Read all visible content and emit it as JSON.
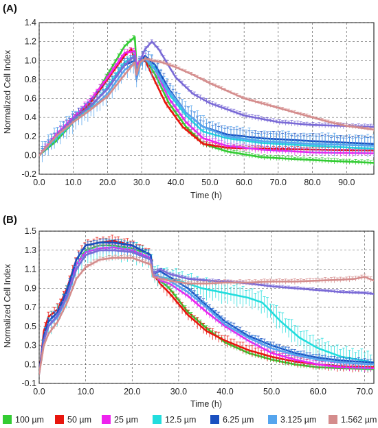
{
  "colors": {
    "100": "#33cc33",
    "50": "#e8150d",
    "25": "#ee22ee",
    "12.5": "#22dddd",
    "6.25": "#1a50c0",
    "3.125": "#55a5ee",
    "1.562": "#d48c8c",
    "lavender": "#7a6ad6"
  },
  "legend": [
    {
      "label": "100 µm",
      "color": "#33cc33"
    },
    {
      "label": "50 µm",
      "color": "#e8150d"
    },
    {
      "label": "25 µm",
      "color": "#ee22ee"
    },
    {
      "label": "12.5 µm",
      "color": "#22dddd"
    },
    {
      "label": "6.25 µm",
      "color": "#1a50c0"
    },
    {
      "label": "3.125 µm",
      "color": "#55a5ee"
    },
    {
      "label": "1.562 µm",
      "color": "#d48c8c"
    }
  ],
  "chart_data": [
    {
      "type": "line",
      "panel_label": "(A)",
      "xlabel": "Time (h)",
      "ylabel": "Normalized Cell Index",
      "xlim": [
        0,
        98
      ],
      "ylim": [
        -0.2,
        1.4
      ],
      "xticks": [
        "0.0",
        "10.0",
        "20.0",
        "30.0",
        "40.0",
        "50.0",
        "60.0",
        "70.0",
        "80.0",
        "90.0"
      ],
      "yticks": [
        "-0.2",
        "0.0",
        "0.2",
        "0.4",
        "0.6",
        "0.8",
        "1.0",
        "1.2",
        "1.4"
      ],
      "grid": true,
      "series": [
        {
          "color": "#33cc33",
          "err": 0.03,
          "x": [
            0,
            5,
            10,
            15,
            20,
            25,
            28,
            28.5,
            29.5,
            31,
            34,
            38,
            43,
            48,
            55,
            65,
            80,
            98
          ],
          "y": [
            0.0,
            0.15,
            0.35,
            0.55,
            0.85,
            1.15,
            1.25,
            0.95,
            1.0,
            1.02,
            0.85,
            0.55,
            0.3,
            0.12,
            0.04,
            -0.02,
            -0.05,
            -0.08
          ]
        },
        {
          "color": "#e8150d",
          "err": 0.03,
          "x": [
            0,
            5,
            10,
            15,
            20,
            25,
            27,
            28,
            28.5,
            29.5,
            31,
            33,
            37,
            42,
            48,
            55,
            65,
            80,
            98
          ],
          "y": [
            0.0,
            0.18,
            0.38,
            0.55,
            0.8,
            1.05,
            1.12,
            1.0,
            0.8,
            0.98,
            1.0,
            0.85,
            0.55,
            0.3,
            0.12,
            0.08,
            0.07,
            0.06,
            0.05
          ]
        },
        {
          "color": "#ee22ee",
          "err": 0.04,
          "x": [
            0,
            5,
            10,
            15,
            20,
            25,
            28,
            28.5,
            29.5,
            31,
            34,
            38,
            43,
            48,
            55,
            65,
            80,
            98
          ],
          "y": [
            0.0,
            0.22,
            0.4,
            0.58,
            0.82,
            1.08,
            1.1,
            0.95,
            1.0,
            1.05,
            0.9,
            0.6,
            0.35,
            0.18,
            0.1,
            0.06,
            0.03,
            0.02
          ]
        },
        {
          "color": "#22dddd",
          "err": 0.04,
          "x": [
            0,
            5,
            10,
            15,
            20,
            25,
            28,
            28.5,
            29.5,
            31,
            34,
            38,
            43,
            48,
            55,
            65,
            80,
            98
          ],
          "y": [
            0.0,
            0.18,
            0.35,
            0.5,
            0.72,
            0.98,
            1.05,
            0.9,
            0.98,
            1.02,
            0.92,
            0.65,
            0.42,
            0.25,
            0.18,
            0.13,
            0.1,
            0.07
          ]
        },
        {
          "color": "#1a50c0",
          "err": 0.08,
          "x": [
            0,
            5,
            10,
            15,
            20,
            25,
            28,
            28.5,
            29.5,
            31,
            34,
            38,
            43,
            48,
            55,
            65,
            80,
            98
          ],
          "y": [
            0.0,
            0.2,
            0.38,
            0.52,
            0.7,
            0.95,
            1.0,
            0.85,
            0.98,
            1.05,
            0.95,
            0.7,
            0.45,
            0.3,
            0.22,
            0.18,
            0.15,
            0.12
          ]
        },
        {
          "color": "#55a5ee",
          "err": 0.12,
          "x": [
            0,
            5,
            10,
            15,
            20,
            25,
            28,
            28.5,
            29.5,
            31,
            34,
            38,
            43,
            48,
            55,
            65,
            80,
            98
          ],
          "y": [
            0.0,
            0.2,
            0.35,
            0.48,
            0.65,
            0.9,
            0.98,
            0.8,
            0.95,
            1.02,
            0.9,
            0.68,
            0.45,
            0.3,
            0.2,
            0.15,
            0.12,
            0.1
          ]
        },
        {
          "color": "#7a6ad6",
          "err": 0.03,
          "x": [
            0,
            5,
            10,
            15,
            20,
            25,
            28,
            28.5,
            29.5,
            31,
            33,
            35,
            40,
            45,
            50,
            60,
            70,
            80,
            98
          ],
          "y": [
            0.0,
            0.2,
            0.38,
            0.52,
            0.7,
            0.95,
            1.05,
            0.85,
            1.0,
            1.12,
            1.2,
            1.12,
            0.82,
            0.65,
            0.55,
            0.42,
            0.35,
            0.32,
            0.3
          ]
        },
        {
          "color": "#d48c8c",
          "err": 0.02,
          "x": [
            0,
            5,
            10,
            15,
            20,
            25,
            28,
            28.5,
            29.5,
            31,
            33,
            36,
            40,
            45,
            50,
            55,
            60,
            65,
            70,
            75,
            80,
            85,
            90,
            98
          ],
          "y": [
            0.0,
            0.2,
            0.35,
            0.48,
            0.62,
            0.85,
            0.98,
            0.85,
            0.98,
            1.02,
            1.0,
            0.98,
            0.93,
            0.85,
            0.76,
            0.68,
            0.6,
            0.55,
            0.5,
            0.45,
            0.4,
            0.35,
            0.31,
            0.27
          ]
        }
      ]
    },
    {
      "type": "line",
      "panel_label": "(B)",
      "xlabel": "Time (h)",
      "ylabel": "Normalized Cell Index",
      "xlim": [
        0,
        72
      ],
      "ylim": [
        -0.1,
        1.5
      ],
      "xticks": [
        "0.0",
        "10.0",
        "20.0",
        "30.0",
        "40.0",
        "50.0",
        "60.0",
        "70.0"
      ],
      "yticks": [
        "-0.1",
        "0.1",
        "0.3",
        "0.5",
        "0.7",
        "0.9",
        "1.1",
        "1.3",
        "1.5"
      ],
      "grid": true,
      "series": [
        {
          "color": "#33cc33",
          "err": 0.03,
          "x": [
            0,
            1,
            2,
            4,
            6,
            8,
            10,
            13,
            16,
            20,
            24,
            24.5,
            26,
            28,
            32,
            36,
            40,
            45,
            50,
            55,
            60,
            65,
            72
          ],
          "y": [
            0.0,
            0.4,
            0.55,
            0.65,
            0.85,
            1.15,
            1.3,
            1.35,
            1.35,
            1.32,
            1.25,
            1.05,
            0.98,
            0.9,
            0.65,
            0.48,
            0.33,
            0.22,
            0.15,
            0.1,
            0.07,
            0.06,
            0.05
          ]
        },
        {
          "color": "#e8150d",
          "err": 0.06,
          "x": [
            0,
            1,
            2,
            4,
            6,
            8,
            10,
            13,
            16,
            20,
            24,
            24.5,
            26,
            28,
            32,
            36,
            40,
            45,
            50,
            55,
            60,
            65,
            72
          ],
          "y": [
            0.0,
            0.45,
            0.6,
            0.68,
            0.9,
            1.2,
            1.35,
            1.38,
            1.4,
            1.35,
            1.25,
            1.05,
            0.95,
            0.85,
            0.62,
            0.45,
            0.35,
            0.25,
            0.18,
            0.13,
            0.1,
            0.08,
            0.07
          ]
        },
        {
          "color": "#ee22ee",
          "err": 0.04,
          "x": [
            0,
            1,
            2,
            4,
            6,
            8,
            10,
            13,
            16,
            20,
            24,
            24.5,
            26,
            28,
            32,
            36,
            40,
            45,
            50,
            55,
            60,
            65,
            72
          ],
          "y": [
            0.0,
            0.4,
            0.55,
            0.65,
            0.85,
            1.15,
            1.28,
            1.32,
            1.33,
            1.3,
            1.22,
            1.05,
            0.98,
            0.95,
            0.82,
            0.65,
            0.5,
            0.35,
            0.22,
            0.15,
            0.1,
            0.07,
            0.06
          ]
        },
        {
          "color": "#22dddd",
          "err": 0.12,
          "x": [
            0,
            1,
            2,
            4,
            6,
            8,
            10,
            13,
            16,
            20,
            24,
            24.5,
            26,
            30,
            35,
            40,
            45,
            48,
            52,
            56,
            60,
            65,
            72
          ],
          "y": [
            0.0,
            0.38,
            0.5,
            0.62,
            0.82,
            1.1,
            1.25,
            1.3,
            1.3,
            1.28,
            1.2,
            1.05,
            1.02,
            0.98,
            0.9,
            0.85,
            0.8,
            0.75,
            0.55,
            0.38,
            0.27,
            0.18,
            0.12
          ]
        },
        {
          "color": "#1a50c0",
          "err": 0.04,
          "x": [
            0,
            1,
            2,
            4,
            6,
            8,
            10,
            13,
            16,
            20,
            24,
            24.5,
            26,
            28,
            32,
            36,
            40,
            45,
            50,
            55,
            60,
            65,
            72
          ],
          "y": [
            0.0,
            0.4,
            0.55,
            0.65,
            0.88,
            1.2,
            1.35,
            1.38,
            1.38,
            1.35,
            1.25,
            1.05,
            1.08,
            1.02,
            0.9,
            0.72,
            0.55,
            0.4,
            0.3,
            0.22,
            0.17,
            0.14,
            0.12
          ]
        },
        {
          "color": "#55a5ee",
          "err": 0.05,
          "x": [
            0,
            1,
            2,
            4,
            6,
            8,
            10,
            13,
            16,
            20,
            24,
            24.5,
            26,
            28,
            32,
            36,
            40,
            45,
            50,
            55,
            60,
            65,
            72
          ],
          "y": [
            0.0,
            0.35,
            0.5,
            0.6,
            0.8,
            1.1,
            1.25,
            1.3,
            1.3,
            1.28,
            1.2,
            1.05,
            1.02,
            0.98,
            0.86,
            0.7,
            0.52,
            0.38,
            0.27,
            0.2,
            0.15,
            0.12,
            0.1
          ]
        },
        {
          "color": "#7a6ad6",
          "err": 0.02,
          "x": [
            0,
            1,
            2,
            4,
            6,
            8,
            10,
            13,
            16,
            20,
            24,
            24.5,
            26,
            28,
            32,
            36,
            40,
            45,
            50,
            55,
            60,
            65,
            70,
            72
          ],
          "y": [
            0.0,
            0.35,
            0.5,
            0.62,
            0.82,
            1.1,
            1.25,
            1.3,
            1.3,
            1.28,
            1.2,
            1.05,
            1.1,
            1.05,
            1.0,
            0.98,
            0.97,
            0.95,
            0.92,
            0.9,
            0.88,
            0.86,
            0.85,
            0.84
          ]
        },
        {
          "color": "#d48c8c",
          "err": 0.03,
          "x": [
            0,
            1,
            2,
            4,
            6,
            8,
            10,
            13,
            16,
            20,
            24,
            24.5,
            26,
            28,
            32,
            36,
            40,
            45,
            50,
            55,
            60,
            65,
            68,
            70,
            72
          ],
          "y": [
            0.0,
            0.3,
            0.42,
            0.55,
            0.75,
            1.0,
            1.12,
            1.2,
            1.22,
            1.22,
            1.15,
            1.02,
            1.0,
            0.98,
            0.95,
            0.95,
            0.96,
            0.96,
            0.97,
            0.97,
            0.98,
            0.99,
            1.0,
            1.02,
            0.98
          ]
        }
      ]
    }
  ]
}
